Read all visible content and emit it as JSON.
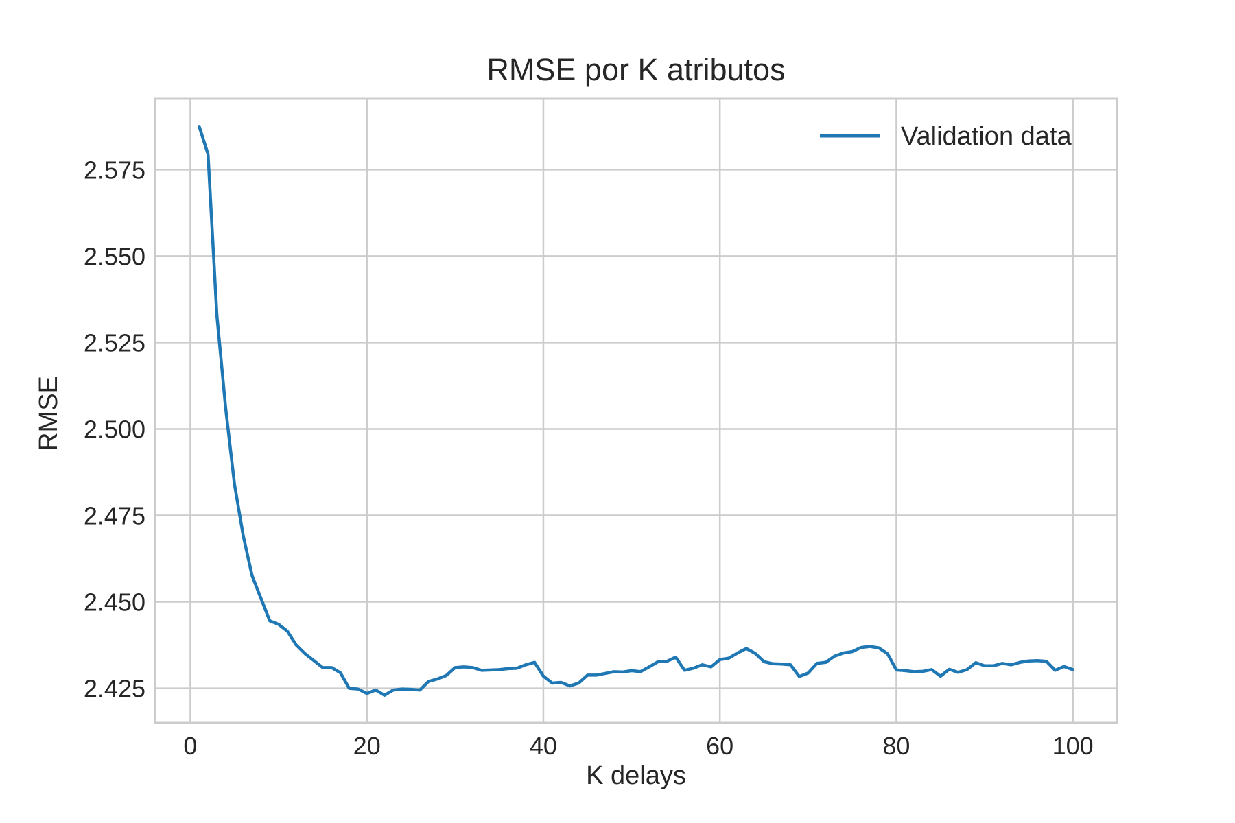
{
  "chart_data": {
    "type": "line",
    "title": "RMSE por K atributos",
    "xlabel": "K delays",
    "ylabel": "RMSE",
    "xlim": [
      -4,
      105
    ],
    "ylim": [
      2.415,
      2.5955
    ],
    "x_ticks": [
      0,
      20,
      40,
      60,
      80,
      100
    ],
    "x_tick_labels": [
      "0",
      "20",
      "40",
      "60",
      "80",
      "100"
    ],
    "y_ticks": [
      2.425,
      2.45,
      2.475,
      2.5,
      2.525,
      2.55,
      2.575
    ],
    "y_tick_labels": [
      "2.425",
      "2.450",
      "2.475",
      "2.500",
      "2.525",
      "2.550",
      "2.575"
    ],
    "grid": true,
    "legend_position": "top-right",
    "series": [
      {
        "name": "Validation data",
        "color": "#1f77b4",
        "x": [
          1,
          2,
          3,
          4,
          5,
          6,
          7,
          8,
          9,
          10,
          11,
          12,
          13,
          14,
          15,
          16,
          17,
          18,
          19,
          20,
          21,
          22,
          23,
          24,
          25,
          26,
          27,
          28,
          29,
          30,
          31,
          32,
          33,
          34,
          35,
          36,
          37,
          38,
          39,
          40,
          41,
          42,
          43,
          44,
          45,
          46,
          47,
          48,
          49,
          50,
          51,
          52,
          53,
          54,
          55,
          56,
          57,
          58,
          59,
          60,
          61,
          62,
          63,
          64,
          65,
          66,
          67,
          68,
          69,
          70,
          71,
          72,
          73,
          74,
          75,
          76,
          77,
          78,
          79,
          80,
          81,
          82,
          83,
          84,
          85,
          86,
          87,
          88,
          89,
          90,
          91,
          92,
          93,
          94,
          95,
          96,
          97,
          98,
          99,
          100
        ],
        "values": [
          2.5875,
          2.5795,
          2.533,
          2.506,
          2.484,
          2.469,
          2.4575,
          2.451,
          2.4445,
          2.4435,
          2.4415,
          2.4375,
          2.435,
          2.433,
          2.431,
          2.431,
          2.4295,
          2.425,
          2.4248,
          2.4235,
          2.4245,
          2.423,
          2.4245,
          2.4248,
          2.4247,
          2.4245,
          2.427,
          2.4277,
          2.4287,
          2.431,
          2.4312,
          2.431,
          2.4302,
          2.4303,
          2.4304,
          2.4307,
          2.4308,
          2.4318,
          2.4325,
          2.4285,
          2.4265,
          2.4267,
          2.4257,
          2.4265,
          2.4288,
          2.4288,
          2.4293,
          2.4298,
          2.4297,
          2.4301,
          2.4298,
          2.4312,
          2.4327,
          2.4328,
          2.434,
          2.4302,
          2.4308,
          2.4318,
          2.4312,
          2.4333,
          2.4337,
          2.4352,
          2.4365,
          2.4351,
          2.4327,
          2.4321,
          2.432,
          2.4318,
          2.4284,
          2.4294,
          2.4322,
          2.4325,
          2.4343,
          2.4352,
          2.4356,
          2.4368,
          2.4371,
          2.4367,
          2.435,
          2.4303,
          2.4301,
          2.4298,
          2.4299,
          2.4304,
          2.4285,
          2.4305,
          2.4296,
          2.4304,
          2.4324,
          2.4315,
          2.4315,
          2.4322,
          2.4318,
          2.4325,
          2.4329,
          2.433,
          2.4328,
          2.4302,
          2.4313,
          2.4304
        ]
      }
    ]
  }
}
